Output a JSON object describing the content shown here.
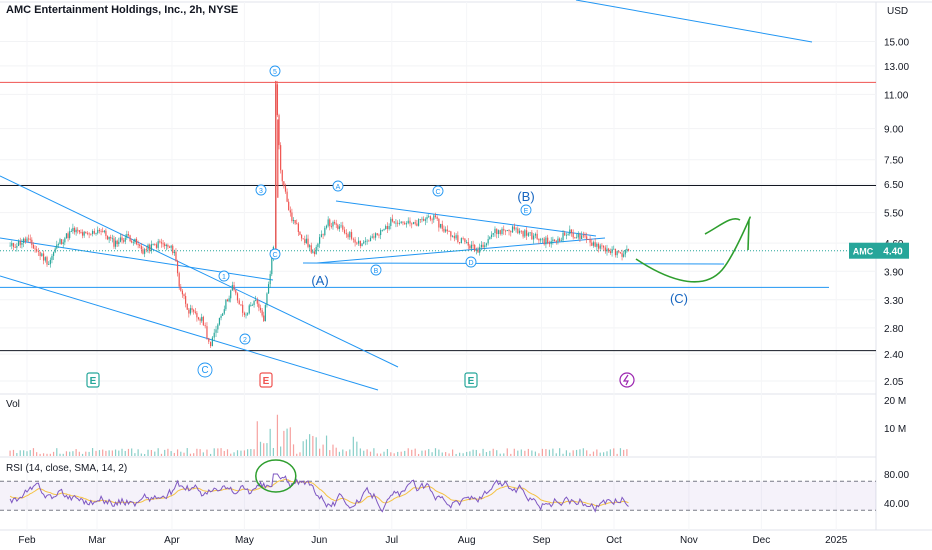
{
  "header": {
    "title": "AMC Entertainment Holdings, Inc., 2h, NYSE",
    "currency": "USD"
  },
  "price_scale": {
    "ticks": [
      "15.00",
      "13.00",
      "11.00",
      "9.00",
      "7.50",
      "6.50",
      "5.50",
      "4.60",
      "3.90",
      "3.30",
      "2.80",
      "2.40",
      "2.05"
    ],
    "last_label": "AMC",
    "last_value": "4.40"
  },
  "volume_panel": {
    "label": "Vol",
    "ticks": [
      "20 M",
      "10 M"
    ]
  },
  "rsi_panel": {
    "label": "RSI (14, close, SMA, 14, 2)",
    "ticks": [
      "80.00",
      "40.00"
    ]
  },
  "time_axis": {
    "labels": [
      "Feb",
      "Mar",
      "Apr",
      "May",
      "Jun",
      "Jul",
      "Aug",
      "Sep",
      "Oct",
      "Nov",
      "Dec",
      "2025"
    ]
  },
  "annotations": {
    "wave_labels": [
      "1",
      "2",
      "3",
      "4",
      "5",
      "A",
      "B",
      "C",
      "D",
      "E"
    ],
    "correction_labels": [
      "(A)",
      "(B)",
      "(C)",
      "C"
    ],
    "events": [
      "E",
      "E",
      "E"
    ]
  },
  "colors": {
    "up": "#26a69a",
    "down": "#ef5350",
    "trendline": "#2196f3",
    "resistance": "#ef5350",
    "arrow": "#2e9e2e",
    "rsi": "#7e57c2",
    "rsi_sma": "#f5c242",
    "dividend": "#9c27b0"
  },
  "chart_data": {
    "type": "candlestick",
    "title": "AMC Entertainment Holdings, Inc., 2h, NYSE",
    "currency": "USD",
    "y_scale": "log",
    "ylim": [
      2.0,
      16.5
    ],
    "x_range": [
      "2024-01-24",
      "2025-01-20"
    ],
    "last_price": 4.4,
    "close_path": [
      [
        "2024-01-25",
        4.5
      ],
      [
        "2024-02-01",
        4.7
      ],
      [
        "2024-02-05",
        4.4
      ],
      [
        "2024-02-10",
        4.1
      ],
      [
        "2024-02-14",
        4.6
      ],
      [
        "2024-02-20",
        4.95
      ],
      [
        "2024-02-26",
        4.8
      ],
      [
        "2024-03-02",
        5.0
      ],
      [
        "2024-03-08",
        4.6
      ],
      [
        "2024-03-14",
        4.8
      ],
      [
        "2024-03-20",
        4.4
      ],
      [
        "2024-03-27",
        4.6
      ],
      [
        "2024-04-02",
        4.4
      ],
      [
        "2024-04-04",
        3.6
      ],
      [
        "2024-04-08",
        3.1
      ],
      [
        "2024-04-14",
        2.9
      ],
      [
        "2024-04-17",
        2.5
      ],
      [
        "2024-04-20",
        2.9
      ],
      [
        "2024-04-26",
        3.55
      ],
      [
        "2024-05-01",
        3.0
      ],
      [
        "2024-05-05",
        3.3
      ],
      [
        "2024-05-09",
        2.95
      ],
      [
        "2024-05-13",
        4.5
      ],
      [
        "2024-05-14",
        11.8
      ],
      [
        "2024-05-16",
        7.0
      ],
      [
        "2024-05-20",
        5.4
      ],
      [
        "2024-05-24",
        4.9
      ],
      [
        "2024-05-30",
        4.3
      ],
      [
        "2024-06-04",
        5.2
      ],
      [
        "2024-06-10",
        5.0
      ],
      [
        "2024-06-18",
        4.6
      ],
      [
        "2024-06-25",
        4.8
      ],
      [
        "2024-07-02",
        5.3
      ],
      [
        "2024-07-10",
        5.1
      ],
      [
        "2024-07-17",
        5.4
      ],
      [
        "2024-07-24",
        4.9
      ],
      [
        "2024-08-01",
        4.6
      ],
      [
        "2024-08-05",
        4.4
      ],
      [
        "2024-08-12",
        4.9
      ],
      [
        "2024-08-20",
        5.0
      ],
      [
        "2024-08-28",
        4.8
      ],
      [
        "2024-09-05",
        4.6
      ],
      [
        "2024-09-12",
        4.9
      ],
      [
        "2024-09-19",
        4.7
      ],
      [
        "2024-09-26",
        4.5
      ],
      [
        "2024-10-03",
        4.3
      ],
      [
        "2024-10-07",
        4.4
      ]
    ],
    "horizontal_levels": [
      {
        "price": 11.8,
        "color": "red"
      },
      {
        "price": 6.45,
        "color": "black"
      },
      {
        "price": 3.55,
        "color": "blue"
      },
      {
        "price": 2.45,
        "color": "black"
      }
    ],
    "volume": {
      "peak": "20 M",
      "spike_date": "2024-05-14"
    },
    "rsi": {
      "settings": "14, close, SMA, 14, 2",
      "levels": [
        70,
        30
      ],
      "peak": 80,
      "peak_date": "2024-05-14"
    }
  }
}
